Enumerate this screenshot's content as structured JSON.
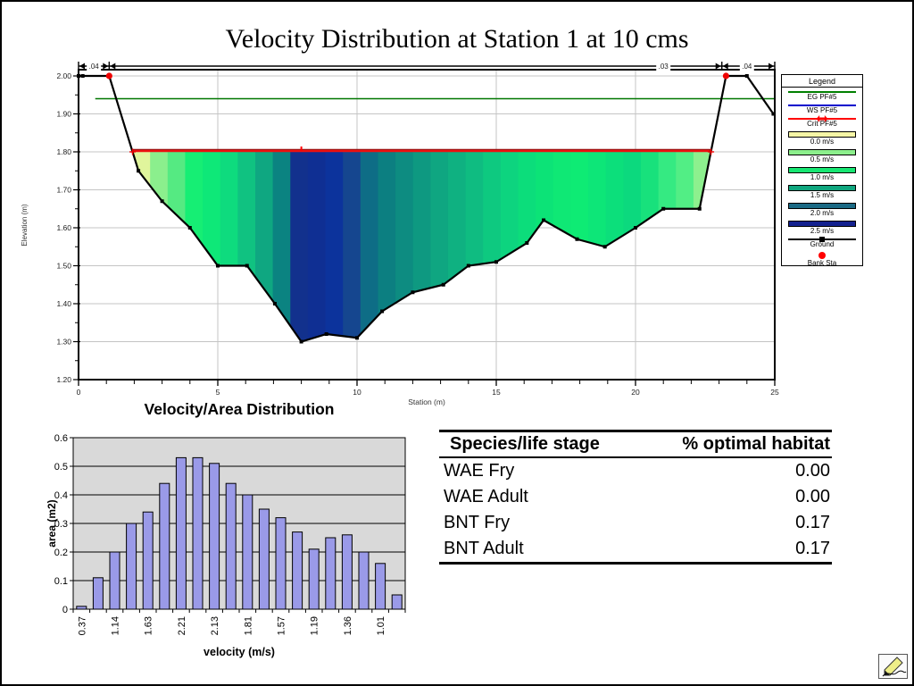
{
  "title": "Velocity Distribution at Station 1 at 10 cms",
  "chart_data": [
    {
      "id": "cross_section",
      "type": "area",
      "title": "Velocity Distribution at Station 1 at 10 cms",
      "xlabel": "Station  (m)",
      "ylabel": "Elevation  (m)",
      "xlim": [
        0,
        25
      ],
      "ylim": [
        1.2,
        2.0
      ],
      "x_ticks": [
        "0",
        "5",
        "10",
        "15",
        "20",
        "25"
      ],
      "y_ticks": [
        "2.00",
        "1.90",
        "1.80",
        "1.70",
        "1.60",
        "1.50",
        "1.40",
        "1.30",
        "1.20"
      ],
      "grid": true,
      "ground_profile": [
        [
          0,
          2.0
        ],
        [
          0.15,
          2.0
        ],
        [
          1.1,
          2.0
        ],
        [
          2.15,
          1.75
        ],
        [
          3,
          1.67
        ],
        [
          4,
          1.6
        ],
        [
          5,
          1.5
        ],
        [
          6.05,
          1.5
        ],
        [
          7.05,
          1.4
        ],
        [
          8,
          1.3
        ],
        [
          8.9,
          1.32
        ],
        [
          10,
          1.31
        ],
        [
          10.9,
          1.38
        ],
        [
          12,
          1.43
        ],
        [
          13.1,
          1.45
        ],
        [
          14,
          1.5
        ],
        [
          15,
          1.51
        ],
        [
          16.1,
          1.56
        ],
        [
          16.7,
          1.62
        ],
        [
          17.9,
          1.57
        ],
        [
          18.9,
          1.55
        ],
        [
          20,
          1.6
        ],
        [
          21,
          1.65
        ],
        [
          22.3,
          1.65
        ],
        [
          23.25,
          2.0
        ],
        [
          24,
          2.0
        ],
        [
          24.95,
          1.9
        ]
      ],
      "water_surface_elevation": 1.8,
      "water_surface_span": [
        1.94,
        22.71
      ],
      "energy_grade_elevation": 1.94,
      "critical_marker_station": 8,
      "bank_stations": [
        [
          1.1,
          2.0
        ],
        [
          23.25,
          2.0
        ]
      ],
      "mannings_n_labels": [
        ".04",
        ".03",
        ".04"
      ],
      "velocity_band_colors": [
        "#e0f59c",
        "#8bef8d",
        "#55ea82",
        "#16ee74",
        "#0ee878",
        "#0edb7e",
        "#10c281",
        "#0fa781",
        "#0b8381",
        "#12318d",
        "#0f2f93",
        "#0c339c",
        "#15468f",
        "#0e6d86",
        "#0c7f81",
        "#0d8c81",
        "#0e9981",
        "#0fa681",
        "#0fb181",
        "#0fbc81",
        "#0ec980",
        "#0dd47f",
        "#0cdd7b",
        "#0ce377",
        "#0fe875",
        "#0eeb74",
        "#0de678",
        "#0cdf7b",
        "#0cd97e",
        "#18e17c",
        "#35ea82",
        "#52ee85",
        "#8df08e"
      ]
    },
    {
      "id": "velocity_area",
      "type": "bar",
      "title": "Velocity/Area Distribution",
      "xlabel": "velocity (m/s)",
      "ylabel": "area (m2)",
      "ylim": [
        0,
        0.6
      ],
      "y_ticks": [
        "0",
        "0.1",
        "0.2",
        "0.3",
        "0.4",
        "0.5",
        "0.6"
      ],
      "values": [
        0.01,
        0.11,
        0.2,
        0.3,
        0.34,
        0.44,
        0.53,
        0.53,
        0.51,
        0.44,
        0.4,
        0.35,
        0.32,
        0.27,
        0.21,
        0.25,
        0.26,
        0.2,
        0.16,
        0.05
      ],
      "bar_labels": [
        "0.37",
        "",
        "1.14",
        "",
        "1.63",
        "",
        "2.21",
        "",
        "2.13",
        "",
        "1.81",
        "",
        "1.57",
        "",
        "1.19",
        "",
        "1.36",
        "",
        "1.01",
        ""
      ],
      "bar_color": "#9a9ae8",
      "plot_bg": "#d9d9d9"
    }
  ],
  "legend": {
    "title": "Legend",
    "items": [
      {
        "label": "EG  PF#5",
        "color": "#008000",
        "style": "line"
      },
      {
        "label": "WS  PF#5",
        "color": "#0000cc",
        "style": "line"
      },
      {
        "label": "Crit  PF#5",
        "color": "#ff0000",
        "style": "line-arrow"
      },
      {
        "label": "0.0 m/s",
        "color": "#f6f6a6",
        "style": "band"
      },
      {
        "label": "0.5 m/s",
        "color": "#8cef8c",
        "style": "band"
      },
      {
        "label": "1.0 m/s",
        "color": "#17e672",
        "style": "band"
      },
      {
        "label": "1.5 m/s",
        "color": "#0fa67e",
        "style": "band"
      },
      {
        "label": "2.0 m/s",
        "color": "#1b6a85",
        "style": "band"
      },
      {
        "label": "2.5 m/s",
        "color": "#13218f",
        "style": "band"
      },
      {
        "label": "Ground",
        "color": "#000000",
        "style": "line-square"
      },
      {
        "label": "Bank  Sta",
        "color": "#ff0000",
        "style": "dot"
      }
    ]
  },
  "habitat_table": {
    "headers": [
      "Species/life stage",
      "% optimal habitat"
    ],
    "rows": [
      [
        "WAE Fry",
        "0.00"
      ],
      [
        "WAE Adult",
        "0.00"
      ],
      [
        "BNT Fry",
        "0.17"
      ],
      [
        "BNT Adult",
        "0.17"
      ]
    ]
  },
  "icons": {
    "edit_tool": "pencil-icon"
  }
}
